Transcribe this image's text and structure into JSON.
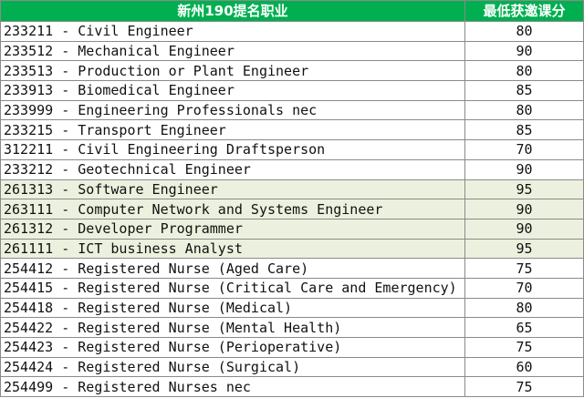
{
  "header": {
    "occupation": "新州190提名职业",
    "score": "最低获邀课分"
  },
  "highlight_color": "#ebf1de",
  "header_color": "#00b050",
  "rows": [
    {
      "occupation": "233211 - Civil Engineer",
      "score": "80",
      "highlighted": false
    },
    {
      "occupation": "233512 - Mechanical Engineer",
      "score": "90",
      "highlighted": false
    },
    {
      "occupation": "233513 - Production or Plant Engineer",
      "score": "80",
      "highlighted": false
    },
    {
      "occupation": "233913 - Biomedical Engineer",
      "score": "85",
      "highlighted": false
    },
    {
      "occupation": "233999 - Engineering Professionals nec",
      "score": "80",
      "highlighted": false
    },
    {
      "occupation": "233215 - Transport Engineer",
      "score": "85",
      "highlighted": false
    },
    {
      "occupation": "312211 - Civil Engineering Draftsperson",
      "score": "70",
      "highlighted": false
    },
    {
      "occupation": "233212 - Geotechnical Engineer",
      "score": "90",
      "highlighted": false
    },
    {
      "occupation": "261313 - Software Engineer",
      "score": "95",
      "highlighted": true
    },
    {
      "occupation": "263111 - Computer Network and Systems Engineer",
      "score": "90",
      "highlighted": true
    },
    {
      "occupation": "261312 - Developer Programmer",
      "score": "90",
      "highlighted": true
    },
    {
      "occupation": "261111 - ICT business Analyst",
      "score": "95",
      "highlighted": true
    },
    {
      "occupation": "254412 - Registered Nurse (Aged Care)",
      "score": "75",
      "highlighted": false
    },
    {
      "occupation": "254415 - Registered Nurse (Critical Care and Emergency)",
      "score": "70",
      "highlighted": false
    },
    {
      "occupation": "254418 - Registered Nurse (Medical)",
      "score": "80",
      "highlighted": false
    },
    {
      "occupation": "254422 - Registered Nurse (Mental Health)",
      "score": "65",
      "highlighted": false
    },
    {
      "occupation": "254423 - Registered Nurse (Perioperative)",
      "score": "75",
      "highlighted": false
    },
    {
      "occupation": "254424 - Registered Nurse (Surgical)",
      "score": "60",
      "highlighted": false
    },
    {
      "occupation": "254499 - Registered Nurses nec",
      "score": "75",
      "highlighted": false
    }
  ]
}
